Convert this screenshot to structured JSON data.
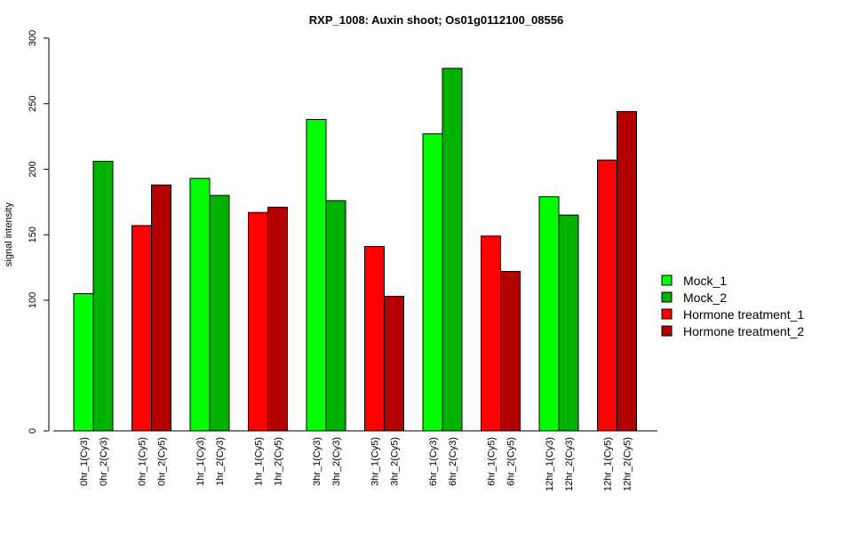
{
  "chart_data": {
    "type": "bar",
    "title": "RXP_1008: Auxin shoot; Os01g0112100_08556",
    "xlabel": "",
    "ylabel": "signal intensity",
    "y_ticks": [
      0,
      100,
      150,
      200,
      250,
      300
    ],
    "ylim": [
      0,
      300
    ],
    "y_scale": "non-linear (0 to 100 compressed)",
    "grid": false,
    "legend_position": "right",
    "categories": [
      "0hr_1(Cy3)",
      "0hr_2(Cy3)",
      "0hr_1(Cy5)",
      "0hr_2(Cy5)",
      "1hr_1(Cy3)",
      "1hr_2(Cy3)",
      "1hr_1(Cy5)",
      "1hr_2(Cy5)",
      "3hr_1(Cy3)",
      "3hr_2(Cy3)",
      "3hr_1(Cy5)",
      "3hr_2(Cy5)",
      "6hr_1(Cy3)",
      "6hr_2(Cy3)",
      "6hr_1(Cy5)",
      "6hr_2(Cy5)",
      "12hr_1(Cy3)",
      "12hr_2(Cy3)",
      "12hr_1(Cy5)",
      "12hr_2(Cy5)"
    ],
    "values": [
      105,
      206,
      157,
      188,
      193,
      180,
      167,
      171,
      238,
      176,
      141,
      103,
      227,
      277,
      149,
      122,
      179,
      165,
      207,
      244
    ],
    "bar_series": [
      0,
      1,
      2,
      3,
      0,
      1,
      2,
      3,
      0,
      1,
      2,
      3,
      0,
      1,
      2,
      3,
      0,
      1,
      2,
      3
    ],
    "series": [
      {
        "name": "Mock_1",
        "color": "#00ff00"
      },
      {
        "name": "Mock_2",
        "color": "#00b300"
      },
      {
        "name": "Hormone treatment_1",
        "color": "#ff0000"
      },
      {
        "name": "Hormone treatment_2",
        "color": "#b30000"
      }
    ]
  }
}
